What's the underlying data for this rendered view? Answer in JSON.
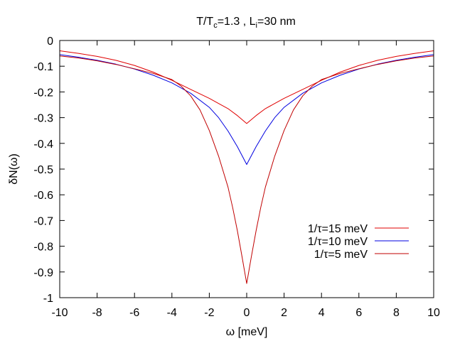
{
  "chart_data": {
    "type": "line",
    "title": {
      "prefix": "T/T",
      "prefix_sub": "c",
      "middle": "=1.3 , L",
      "middle_sub": "i",
      "suffix": "=30 nm"
    },
    "xlabel": "ω [meV]",
    "ylabel": "δN(ω)",
    "xlim": [
      -10,
      10
    ],
    "ylim": [
      -1,
      0
    ],
    "xticks": [
      -10,
      -8,
      -6,
      -4,
      -2,
      0,
      2,
      4,
      6,
      8,
      10
    ],
    "yticks": [
      0,
      -0.1,
      -0.2,
      -0.3,
      -0.4,
      -0.5,
      -0.6,
      -0.7,
      -0.8,
      -0.9,
      -1
    ],
    "grid": false,
    "legend_position": "right-middle",
    "series": [
      {
        "name": "1/τ=15 meV",
        "color": "#e00000",
        "x": [
          -10,
          -9,
          -8,
          -7,
          -6,
          -5,
          -4,
          -3,
          -2,
          -1.5,
          -1,
          -0.5,
          0,
          0.5,
          1,
          1.5,
          2,
          3,
          4,
          5,
          6,
          7,
          8,
          9,
          10
        ],
        "y": [
          -0.04,
          -0.05,
          -0.062,
          -0.077,
          -0.097,
          -0.123,
          -0.155,
          -0.19,
          -0.225,
          -0.245,
          -0.265,
          -0.292,
          -0.323,
          -0.292,
          -0.265,
          -0.245,
          -0.225,
          -0.19,
          -0.155,
          -0.123,
          -0.097,
          -0.077,
          -0.062,
          -0.05,
          -0.04
        ]
      },
      {
        "name": "1/τ=10 meV",
        "color": "#0000e0",
        "x": [
          -10,
          -9,
          -8,
          -7,
          -6,
          -5,
          -4,
          -3,
          -2,
          -1.5,
          -1,
          -0.5,
          0,
          0.5,
          1,
          1.5,
          2,
          3,
          4,
          5,
          6,
          7,
          8,
          9,
          10
        ],
        "y": [
          -0.055,
          -0.065,
          -0.077,
          -0.092,
          -0.111,
          -0.135,
          -0.165,
          -0.205,
          -0.26,
          -0.3,
          -0.352,
          -0.413,
          -0.482,
          -0.413,
          -0.352,
          -0.3,
          -0.26,
          -0.205,
          -0.165,
          -0.135,
          -0.111,
          -0.092,
          -0.077,
          -0.065,
          -0.055
        ]
      },
      {
        "name": "1/τ=5 meV",
        "color": "#c00000",
        "x": [
          -10,
          -9,
          -8,
          -7,
          -6,
          -5,
          -4,
          -3.5,
          -3,
          -2.5,
          -2,
          -1.5,
          -1,
          -0.75,
          -0.5,
          -0.25,
          0,
          0.25,
          0.5,
          0.75,
          1,
          1.5,
          2,
          2.5,
          3,
          3.5,
          4,
          5,
          6,
          7,
          8,
          9,
          10
        ],
        "y": [
          -0.06,
          -0.068,
          -0.079,
          -0.093,
          -0.11,
          -0.128,
          -0.152,
          -0.178,
          -0.215,
          -0.27,
          -0.35,
          -0.45,
          -0.57,
          -0.65,
          -0.74,
          -0.84,
          -0.945,
          -0.84,
          -0.74,
          -0.65,
          -0.57,
          -0.45,
          -0.35,
          -0.27,
          -0.215,
          -0.178,
          -0.152,
          -0.128,
          -0.11,
          -0.093,
          -0.079,
          -0.068,
          -0.06
        ]
      }
    ]
  }
}
